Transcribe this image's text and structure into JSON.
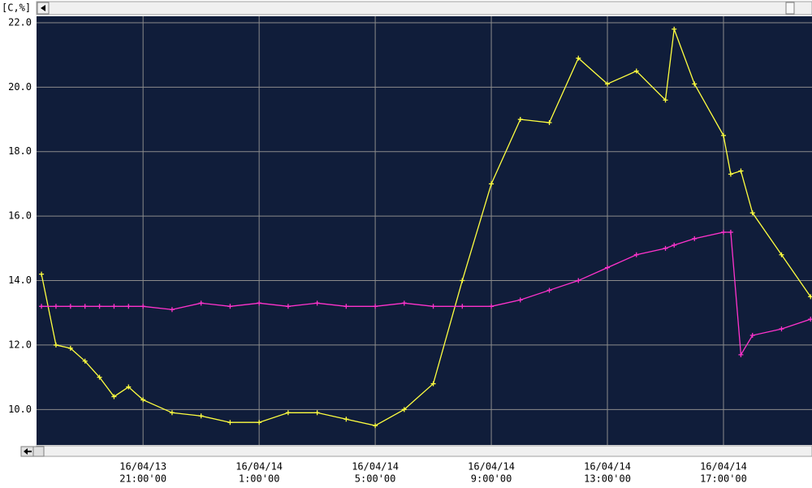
{
  "chart_data": {
    "type": "line",
    "y_label": "[C,%]",
    "x": [
      17.5,
      18,
      18.5,
      19,
      19.5,
      20,
      20.5,
      21,
      22,
      23,
      24,
      25,
      26,
      27,
      28,
      29,
      30,
      31,
      32,
      33,
      34,
      35,
      36,
      37,
      38,
      39,
      39.3,
      40,
      41,
      41.25,
      41.6,
      42,
      43,
      44
    ],
    "series": [
      {
        "color": "#ffff40",
        "values": [
          14.2,
          12.0,
          11.9,
          11.5,
          11.0,
          10.4,
          10.7,
          10.3,
          9.9,
          9.8,
          9.6,
          9.6,
          9.9,
          9.9,
          9.7,
          9.5,
          10.0,
          10.8,
          14.0,
          17.0,
          19.0,
          18.9,
          20.9,
          20.1,
          20.5,
          19.6,
          21.8,
          20.1,
          18.5,
          17.3,
          17.4,
          16.1,
          14.8,
          13.5
        ]
      },
      {
        "color": "#ff33cc",
        "values": [
          13.2,
          13.2,
          13.2,
          13.2,
          13.2,
          13.2,
          13.2,
          13.2,
          13.1,
          13.3,
          13.2,
          13.3,
          13.2,
          13.3,
          13.2,
          13.2,
          13.3,
          13.2,
          13.2,
          13.2,
          13.4,
          13.7,
          14.0,
          14.4,
          14.8,
          15.0,
          15.1,
          15.3,
          15.5,
          15.5,
          11.7,
          12.3,
          12.5,
          12.8
        ]
      }
    ],
    "xlim": [
      17.33,
      44.05
    ],
    "xticks": [
      {
        "value": 21,
        "label": [
          "16/04/13",
          "21:00'00"
        ]
      },
      {
        "value": 25,
        "label": [
          "16/04/14",
          "1:00'00"
        ]
      },
      {
        "value": 29,
        "label": [
          "16/04/14",
          "5:00'00"
        ]
      },
      {
        "value": 33,
        "label": [
          "16/04/14",
          "9:00'00"
        ]
      },
      {
        "value": 37,
        "label": [
          "16/04/14",
          "13:00'00"
        ]
      },
      {
        "value": 41,
        "label": [
          "16/04/14",
          "17:00'00"
        ]
      }
    ],
    "ylim": [
      8.9,
      22.2
    ],
    "yticks": [
      {
        "value": 10,
        "label": "10.0"
      },
      {
        "value": 12,
        "label": "12.0"
      },
      {
        "value": 14,
        "label": "14.0"
      },
      {
        "value": 16,
        "label": "16.0"
      },
      {
        "value": 18,
        "label": "18.0"
      },
      {
        "value": 20,
        "label": "20.0"
      },
      {
        "value": 22,
        "label": "22.0"
      }
    ],
    "grid": true,
    "markers": "plus"
  }
}
